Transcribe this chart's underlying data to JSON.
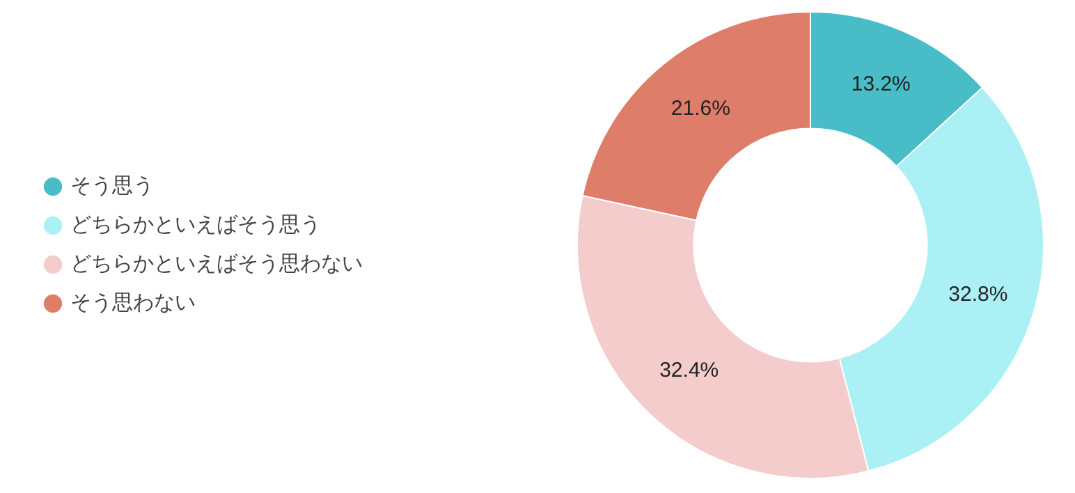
{
  "chart_data": {
    "type": "donut",
    "categories": [
      "そう思う",
      "どちらかといえばそう思う",
      "どちらかといえばそう思わない",
      "そう思わない"
    ],
    "values": [
      13.2,
      32.8,
      32.4,
      21.6
    ],
    "colors": [
      "#48bdc8",
      "#abf0f4",
      "#f4cccc",
      "#de7e6a"
    ],
    "value_labels": [
      "13.2%",
      "32.8%",
      "32.4%",
      "21.6%"
    ],
    "legend": "left"
  }
}
